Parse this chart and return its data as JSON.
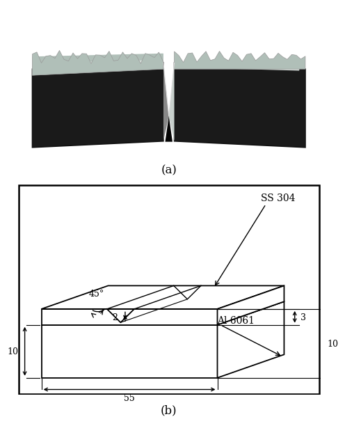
{
  "fig_width": 4.74,
  "fig_height": 6.34,
  "bg_color": "#ffffff",
  "label_a": "(a)",
  "label_b": "(b)",
  "annotations": {
    "angle": "45°",
    "notch_depth": "2",
    "ss_thickness": "3",
    "total_height": "10",
    "length": "55",
    "width": "10",
    "material_top": "SS 304",
    "material_bottom": "Al 6061"
  },
  "photo": {
    "bg": "#8B1010",
    "body_dark": "#1a1a1a",
    "top_silver": "#b0bfb8",
    "top_light": "#d8e0dc",
    "notch_shine": "#c8d0cc",
    "notch_dark": "#050505"
  }
}
